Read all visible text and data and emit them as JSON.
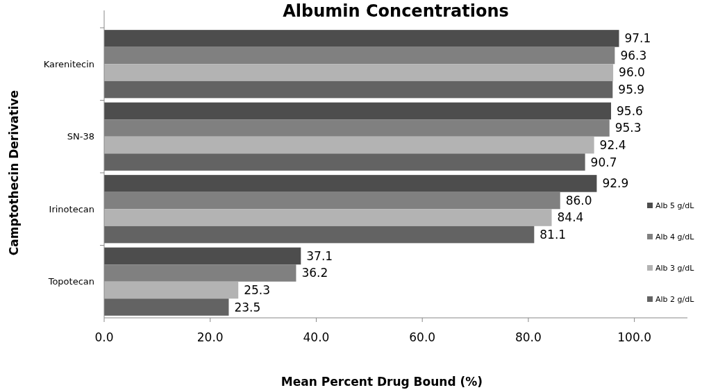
{
  "chart_data": {
    "type": "bar",
    "orientation": "horizontal",
    "title": "Albumin Concentrations",
    "xlabel": "Mean Percent Drug Bound (%)",
    "ylabel": "Camptothecin Derivative",
    "categories": [
      "Karenitecin",
      "SN-38",
      "Irinotecan",
      "Topotecan"
    ],
    "series": [
      {
        "name": "Alb 5 g/dL",
        "color": "#4d4d4d",
        "values": [
          97.1,
          95.6,
          92.9,
          37.1
        ],
        "value_labels": [
          "97.1",
          "95.6",
          "92.9",
          "37.1"
        ]
      },
      {
        "name": "Alb 4 g/dL",
        "color": "#808080",
        "values": [
          96.3,
          95.3,
          86.0,
          36.2
        ],
        "value_labels": [
          "96.3",
          "95.3",
          "86.0",
          "36.2"
        ]
      },
      {
        "name": "Alb 3 g/dL",
        "color": "#b3b3b3",
        "values": [
          96.0,
          92.4,
          84.4,
          25.3
        ],
        "value_labels": [
          "96.0",
          "92.4",
          "84.4",
          "25.3"
        ]
      },
      {
        "name": "Alb 2 g/dL",
        "color": "#636363",
        "values": [
          95.9,
          90.7,
          81.1,
          23.5
        ],
        "value_labels": [
          "95.9",
          "90.7",
          "81.1",
          "23.5"
        ]
      }
    ],
    "xlim": [
      0,
      110
    ],
    "xticks": [
      {
        "value": 0,
        "label": "0.0"
      },
      {
        "value": 20,
        "label": "20.0"
      },
      {
        "value": 40,
        "label": "40.0"
      },
      {
        "value": 60,
        "label": "60.0"
      },
      {
        "value": 80,
        "label": "80.0"
      },
      {
        "value": 100,
        "label": "100.0"
      }
    ],
    "legend": "right"
  }
}
